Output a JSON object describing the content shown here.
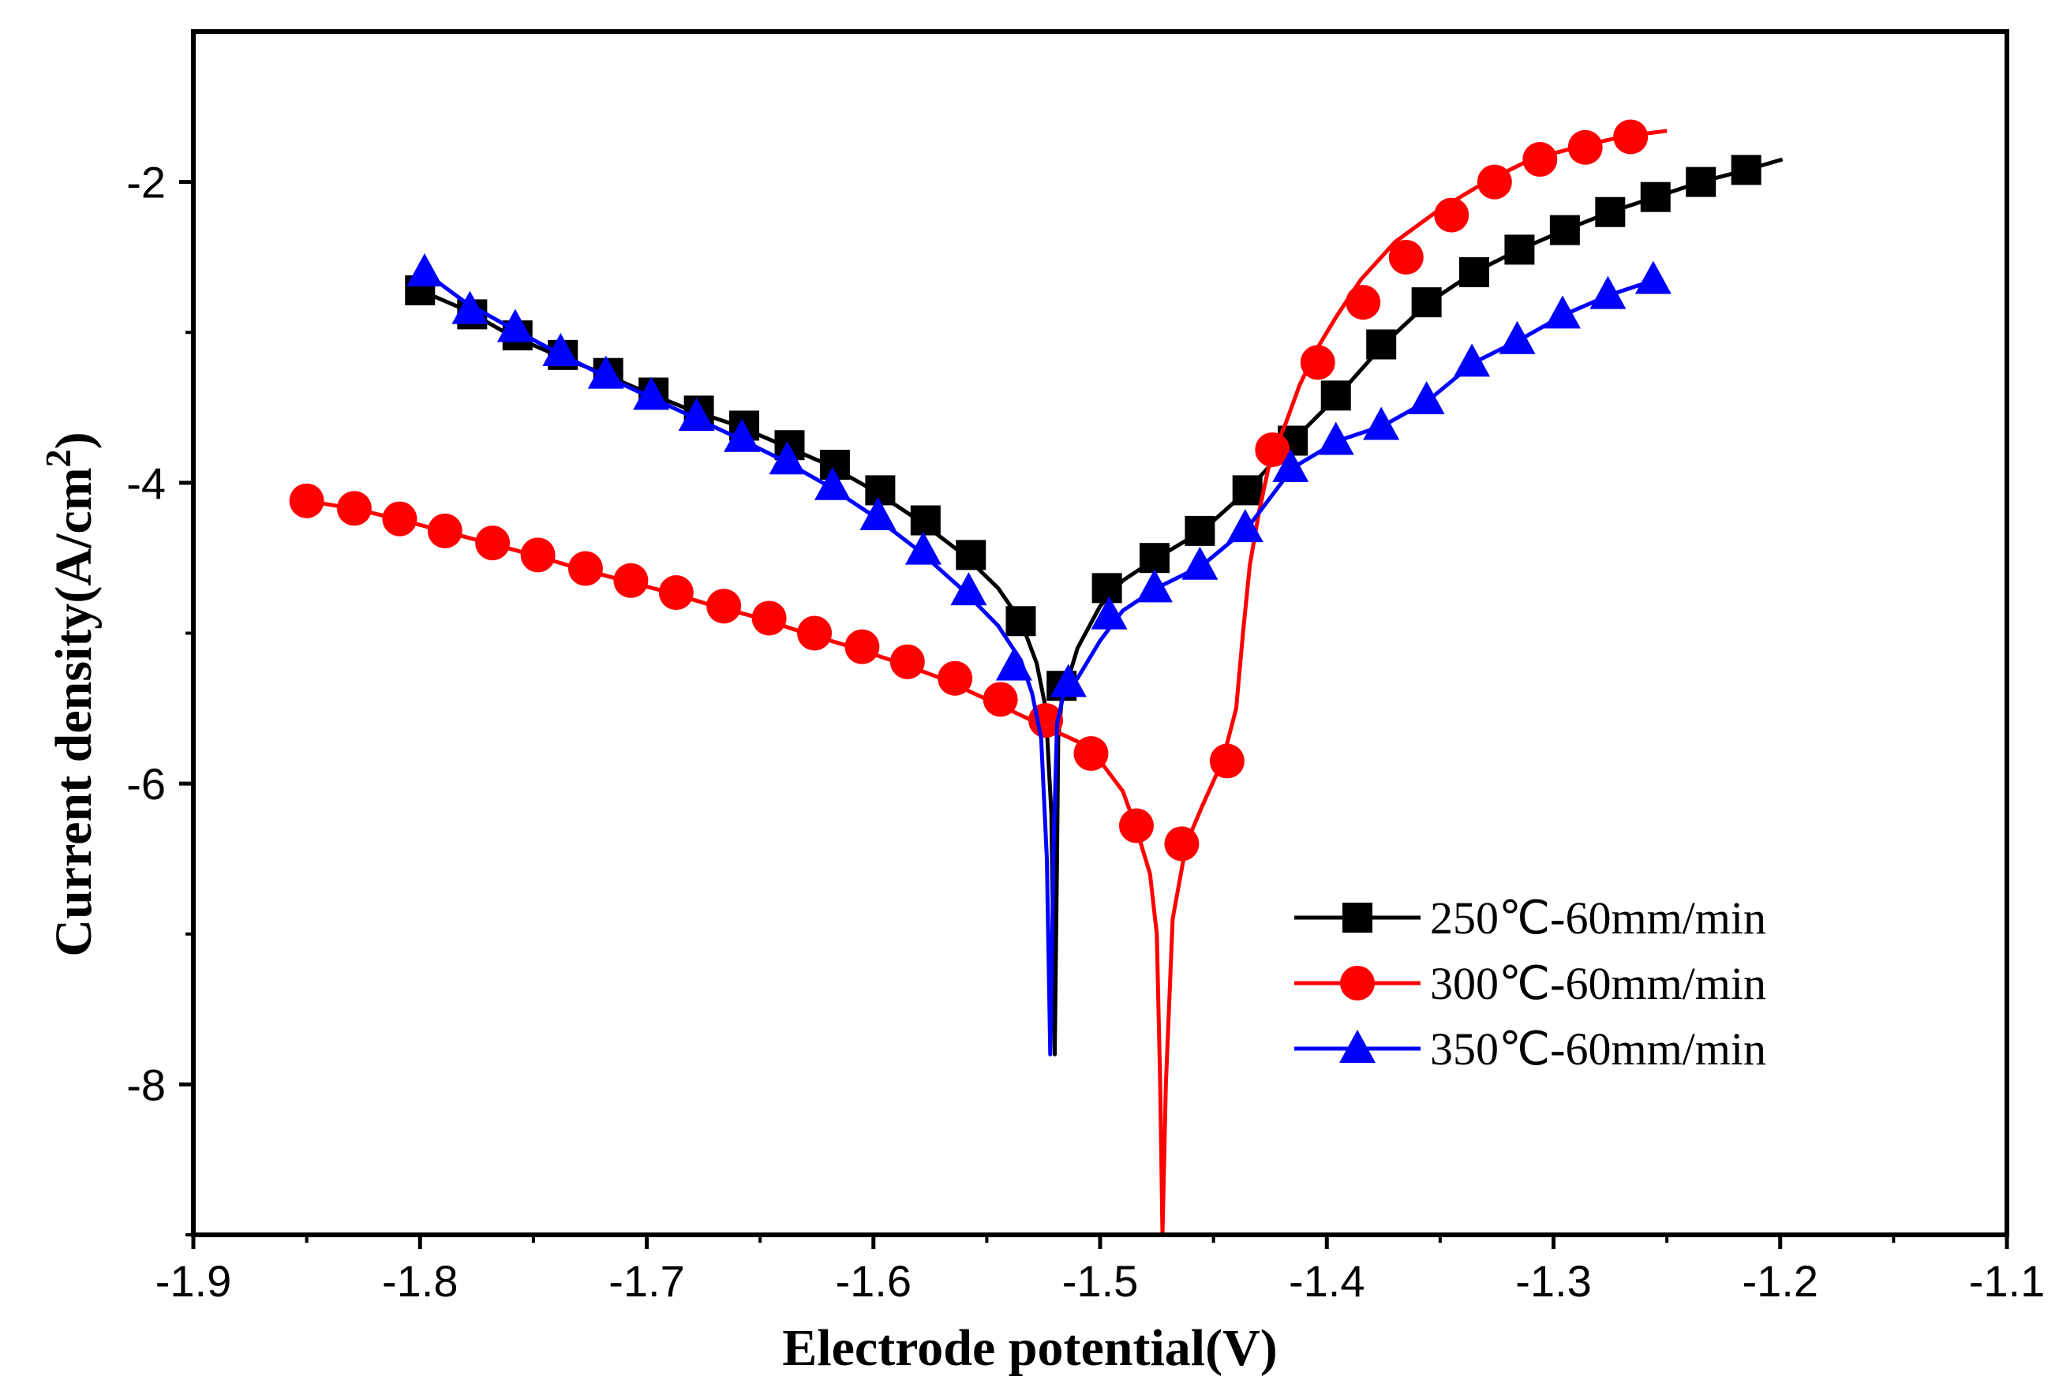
{
  "chart_data": {
    "type": "line",
    "title": "",
    "xlabel": "Electrode potential(V)",
    "ylabel": "Current density(A/cm",
    "ylabel_superscript": "2",
    "ylabel_close": ")",
    "xlim": [
      -1.9,
      -1.1
    ],
    "ylim": [
      -9.0,
      -1.0
    ],
    "xticks": [
      -1.9,
      -1.8,
      -1.7,
      -1.6,
      -1.5,
      -1.4,
      -1.3,
      -1.2,
      -1.1
    ],
    "xtick_labels": [
      "-1.9",
      "-1.8",
      "-1.7",
      "-1.6",
      "-1.5",
      "-1.4",
      "-1.3",
      "-1.2",
      "-1.1"
    ],
    "yticks": [
      -2,
      -4,
      -6,
      -8
    ],
    "ytick_labels": [
      "-2",
      "-4",
      "-6",
      "-8"
    ],
    "legend_position": "lower-right",
    "series": [
      {
        "name": "250℃-60mm/min",
        "color": "#000000",
        "marker": "square",
        "line_x": [
          -1.8,
          -1.78,
          -1.76,
          -1.74,
          -1.72,
          -1.7,
          -1.68,
          -1.66,
          -1.64,
          -1.62,
          -1.6,
          -1.58,
          -1.56,
          -1.545,
          -1.535,
          -1.528,
          -1.524,
          -1.5215,
          -1.52,
          -1.519,
          -1.5185,
          -1.517,
          -1.515,
          -1.51,
          -1.5,
          -1.49,
          -1.475,
          -1.455,
          -1.435,
          -1.415,
          -1.395,
          -1.375,
          -1.355,
          -1.335,
          -1.315,
          -1.295,
          -1.275,
          -1.255,
          -1.235,
          -1.215,
          -1.199
        ],
        "line_y": [
          -2.72,
          -2.85,
          -3.02,
          -3.15,
          -3.27,
          -3.4,
          -3.52,
          -3.62,
          -3.75,
          -3.88,
          -4.05,
          -4.25,
          -4.48,
          -4.7,
          -4.92,
          -5.2,
          -5.5,
          -6.2,
          -7.8,
          -6.5,
          -5.7,
          -5.45,
          -5.35,
          -5.1,
          -4.82,
          -4.65,
          -4.5,
          -4.32,
          -4.05,
          -3.72,
          -3.42,
          -3.08,
          -2.8,
          -2.6,
          -2.45,
          -2.32,
          -2.2,
          -2.1,
          -2.0,
          -1.92,
          -1.85
        ],
        "marker_x": [
          -1.8,
          -1.777,
          -1.757,
          -1.737,
          -1.717,
          -1.697,
          -1.677,
          -1.657,
          -1.637,
          -1.617,
          -1.597,
          -1.577,
          -1.557,
          -1.535,
          -1.517,
          -1.497,
          -1.476,
          -1.456,
          -1.435,
          -1.415,
          -1.396,
          -1.376,
          -1.356,
          -1.335,
          -1.315,
          -1.295,
          -1.275,
          -1.255,
          -1.235,
          -1.215
        ],
        "marker_y": [
          -2.72,
          -2.88,
          -3.02,
          -3.15,
          -3.27,
          -3.4,
          -3.52,
          -3.62,
          -3.75,
          -3.88,
          -4.05,
          -4.25,
          -4.48,
          -4.92,
          -5.35,
          -4.7,
          -4.5,
          -4.32,
          -4.05,
          -3.72,
          -3.42,
          -3.08,
          -2.8,
          -2.6,
          -2.45,
          -2.32,
          -2.2,
          -2.1,
          -2.0,
          -1.92
        ]
      },
      {
        "name": "300℃-60mm/min",
        "color": "#ff0000",
        "marker": "circle",
        "line_x": [
          -1.85,
          -1.83,
          -1.81,
          -1.79,
          -1.77,
          -1.75,
          -1.73,
          -1.71,
          -1.69,
          -1.67,
          -1.65,
          -1.63,
          -1.61,
          -1.59,
          -1.57,
          -1.55,
          -1.53,
          -1.51,
          -1.5,
          -1.49,
          -1.484,
          -1.478,
          -1.475,
          -1.4735,
          -1.4725,
          -1.471,
          -1.468,
          -1.462,
          -1.455,
          -1.446,
          -1.44,
          -1.437,
          -1.434,
          -1.43,
          -1.425,
          -1.418,
          -1.412,
          -1.404,
          -1.396,
          -1.385,
          -1.37,
          -1.35,
          -1.33,
          -1.31,
          -1.29,
          -1.27,
          -1.25
        ],
        "line_y": [
          -4.12,
          -4.17,
          -4.24,
          -4.32,
          -4.4,
          -4.48,
          -4.57,
          -4.65,
          -4.73,
          -4.82,
          -4.9,
          -5.0,
          -5.09,
          -5.19,
          -5.3,
          -5.44,
          -5.58,
          -5.72,
          -5.85,
          -6.05,
          -6.3,
          -6.6,
          -7.0,
          -8.0,
          -9.0,
          -8.0,
          -6.9,
          -6.4,
          -6.15,
          -5.85,
          -5.5,
          -5.0,
          -4.55,
          -4.2,
          -3.85,
          -3.6,
          -3.35,
          -3.1,
          -2.9,
          -2.65,
          -2.4,
          -2.18,
          -2.0,
          -1.85,
          -1.77,
          -1.7,
          -1.66
        ],
        "marker_x": [
          -1.85,
          -1.829,
          -1.809,
          -1.789,
          -1.768,
          -1.748,
          -1.727,
          -1.707,
          -1.687,
          -1.666,
          -1.646,
          -1.626,
          -1.605,
          -1.585,
          -1.564,
          -1.544,
          -1.524,
          -1.504,
          -1.484,
          -1.464,
          -1.444,
          -1.424,
          -1.404,
          -1.384,
          -1.365,
          -1.345,
          -1.326,
          -1.306,
          -1.286,
          -1.266
        ],
        "marker_y": [
          -4.12,
          -4.17,
          -4.24,
          -4.32,
          -4.4,
          -4.48,
          -4.57,
          -4.65,
          -4.73,
          -4.82,
          -4.9,
          -5.0,
          -5.09,
          -5.19,
          -5.3,
          -5.44,
          -5.58,
          -5.8,
          -6.28,
          -6.4,
          -5.85,
          -3.78,
          -3.2,
          -2.8,
          -2.5,
          -2.22,
          -2.0,
          -1.85,
          -1.77,
          -1.7
        ]
      },
      {
        "name": "350℃-60mm/min",
        "color": "#0000ff",
        "marker": "triangle",
        "line_x": [
          -1.798,
          -1.78,
          -1.76,
          -1.74,
          -1.72,
          -1.7,
          -1.68,
          -1.66,
          -1.64,
          -1.62,
          -1.6,
          -1.58,
          -1.56,
          -1.545,
          -1.535,
          -1.53,
          -1.526,
          -1.5235,
          -1.522,
          -1.5205,
          -1.519,
          -1.516,
          -1.51,
          -1.5,
          -1.49,
          -1.475,
          -1.455,
          -1.435,
          -1.415,
          -1.395,
          -1.375,
          -1.355,
          -1.335,
          -1.315,
          -1.295,
          -1.275,
          -1.255
        ],
        "line_y": [
          -2.6,
          -2.8,
          -2.97,
          -3.13,
          -3.28,
          -3.42,
          -3.56,
          -3.7,
          -3.85,
          -4.02,
          -4.22,
          -4.45,
          -4.72,
          -4.95,
          -5.18,
          -5.4,
          -5.7,
          -6.5,
          -7.8,
          -6.4,
          -5.6,
          -5.4,
          -5.3,
          -5.05,
          -4.85,
          -4.7,
          -4.55,
          -4.3,
          -3.9,
          -3.72,
          -3.62,
          -3.45,
          -3.2,
          -3.05,
          -2.88,
          -2.75,
          -2.65
        ],
        "marker_x": [
          -1.798,
          -1.778,
          -1.758,
          -1.738,
          -1.718,
          -1.698,
          -1.678,
          -1.658,
          -1.638,
          -1.618,
          -1.598,
          -1.578,
          -1.558,
          -1.538,
          -1.514,
          -1.496,
          -1.476,
          -1.456,
          -1.436,
          -1.416,
          -1.396,
          -1.376,
          -1.356,
          -1.336,
          -1.316,
          -1.296,
          -1.276,
          -1.256
        ],
        "marker_y": [
          -2.6,
          -2.85,
          -2.97,
          -3.13,
          -3.28,
          -3.42,
          -3.56,
          -3.7,
          -3.85,
          -4.02,
          -4.22,
          -4.45,
          -4.72,
          -5.22,
          -5.33,
          -4.88,
          -4.7,
          -4.55,
          -4.3,
          -3.9,
          -3.72,
          -3.62,
          -3.45,
          -3.2,
          -3.05,
          -2.88,
          -2.75,
          -2.65
        ]
      }
    ]
  }
}
